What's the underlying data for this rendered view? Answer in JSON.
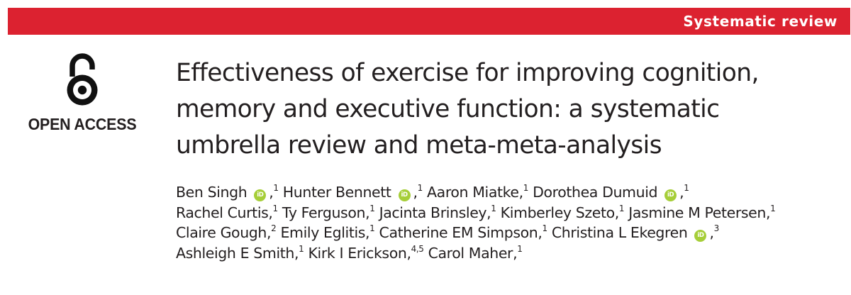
{
  "header": {
    "article_type": "Systematic review",
    "bar_color": "#dc2230"
  },
  "open_access": {
    "label": "OPEN ACCESS",
    "icon": "open-access-lock-icon"
  },
  "title_lines": [
    "Effectiveness of exercise for improving cognition,",
    "memory and executive function: a systematic",
    "umbrella review and meta-meta-analysis"
  ],
  "author_lines": [
    [
      {
        "name": "Ben Singh",
        "orcid": true,
        "aff": "1"
      },
      {
        "name": "Hunter Bennett",
        "orcid": true,
        "aff": "1"
      },
      {
        "name": "Aaron Miatke",
        "orcid": false,
        "aff": "1"
      },
      {
        "name": "Dorothea Dumuid",
        "orcid": true,
        "aff": "1"
      }
    ],
    [
      {
        "name": "Rachel Curtis",
        "orcid": false,
        "aff": "1"
      },
      {
        "name": "Ty Ferguson",
        "orcid": false,
        "aff": "1"
      },
      {
        "name": "Jacinta Brinsley",
        "orcid": false,
        "aff": "1"
      },
      {
        "name": "Kimberley Szeto",
        "orcid": false,
        "aff": "1"
      },
      {
        "name": "Jasmine M Petersen",
        "orcid": false,
        "aff": "1"
      }
    ],
    [
      {
        "name": "Claire Gough",
        "orcid": false,
        "aff": "2"
      },
      {
        "name": "Emily Eglitis",
        "orcid": false,
        "aff": "1"
      },
      {
        "name": "Catherine EM Simpson",
        "orcid": false,
        "aff": "1"
      },
      {
        "name": "Christina L Ekegren",
        "orcid": true,
        "aff": "3"
      }
    ],
    [
      {
        "name": "Ashleigh E Smith",
        "orcid": false,
        "aff": "1"
      },
      {
        "name": "Kirk I Erickson",
        "orcid": false,
        "aff": "4,5"
      },
      {
        "name": "Carol Maher",
        "orcid": false,
        "aff": "1"
      }
    ]
  ],
  "orcid": {
    "icon": "orcid-icon",
    "glyph": "iD",
    "color": "#a6ce39"
  }
}
